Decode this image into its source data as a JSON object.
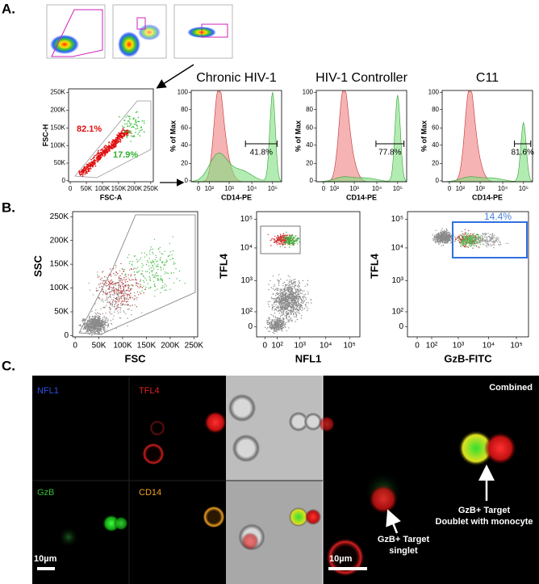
{
  "panel_a": {
    "label": "A.",
    "scatter": {
      "y_label": "FSC-H",
      "x_label": "FSC-A",
      "y_ticks": [
        "250K",
        "200K",
        "150K",
        "100K",
        "50K",
        "0"
      ],
      "x_ticks": [
        "0",
        "50K",
        "100K",
        "150K",
        "200K",
        "250K"
      ],
      "gates": [
        "82.1%",
        "17.9%"
      ]
    },
    "histograms": [
      {
        "title": "Chronic  HIV-1",
        "gate": "41.8%"
      },
      {
        "title": "HIV-1  Controller",
        "gate": "77.8%"
      },
      {
        "title": "C11",
        "gate": "81.6%"
      }
    ],
    "hist_y_label": "% of Max",
    "hist_y_ticks": [
      "100",
      "80",
      "60",
      "40",
      "20",
      "0"
    ],
    "hist_x_label": "CD14-PE",
    "hist_x_ticks": [
      "0",
      "10²",
      "10³",
      "10⁴",
      "10⁵"
    ]
  },
  "panel_b": {
    "label": "B.",
    "plots": [
      {
        "y_label": "SSC",
        "x_label": "FSC",
        "y_ticks": [
          "250K",
          "200K",
          "150K",
          "100K",
          "50K",
          "0"
        ],
        "x_ticks": [
          "0",
          "50K",
          "100K",
          "150K",
          "200K",
          "250K"
        ]
      },
      {
        "y_label": "TFL4",
        "x_label": "NFL1",
        "y_ticks": [
          "10⁵",
          "10⁴",
          "10³",
          "10²",
          "0"
        ],
        "x_ticks": [
          "0",
          "10²",
          "10³",
          "10⁴",
          "10⁵"
        ]
      },
      {
        "y_label": "TFL4",
        "x_label": "GzB-FITC",
        "gate": "14.4%",
        "y_ticks": [
          "10⁵",
          "10⁴",
          "10³",
          "10²",
          "0"
        ],
        "x_ticks": [
          "0",
          "10²",
          "10³",
          "10⁴",
          "10⁵"
        ]
      }
    ]
  },
  "panel_c": {
    "label": "C.",
    "channels": [
      "NFL1",
      "TFL4",
      "GzB",
      "CD14"
    ],
    "combined": "Combined",
    "scale_bar": "10µm",
    "annotations": [
      [
        "GzB+ Target",
        "Doublet with monocyte"
      ],
      [
        "GzB+ Target",
        "singlet"
      ]
    ]
  }
}
